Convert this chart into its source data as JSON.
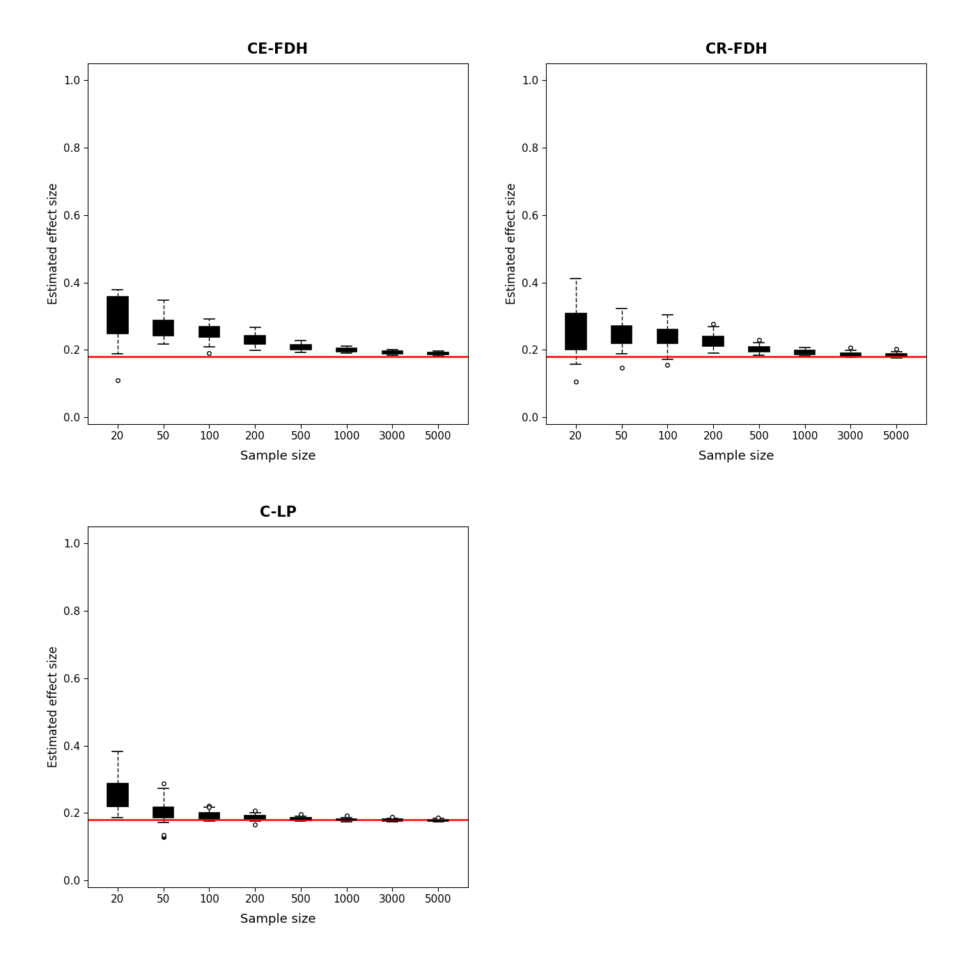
{
  "titles": [
    "CE-FDH",
    "CR-FDH",
    "C-LP"
  ],
  "sample_sizes": [
    20,
    50,
    100,
    200,
    500,
    1000,
    3000,
    5000
  ],
  "true_effect_size": 0.18,
  "ylabel": "Estimated effect size",
  "xlabel": "Sample size",
  "ylim": [
    -0.02,
    1.05
  ],
  "yticks": [
    0.0,
    0.2,
    0.4,
    0.6,
    0.8,
    1.0
  ],
  "ytick_labels": [
    "0.0",
    "0.2",
    "0.4",
    "0.6",
    "0.8",
    "1.0"
  ],
  "reference_line_color": "#FF0000",
  "box_facecolor": "#C8C8C8",
  "box_edgecolor": "#000000",
  "median_color": "#000000",
  "whisker_color": "#000000",
  "flier_color": "#000000",
  "CE_FDH": {
    "medians": [
      0.308,
      0.268,
      0.255,
      0.228,
      0.207,
      0.2,
      0.193,
      0.189
    ],
    "q1": [
      0.248,
      0.242,
      0.238,
      0.218,
      0.2,
      0.195,
      0.189,
      0.186
    ],
    "q3": [
      0.358,
      0.288,
      0.27,
      0.242,
      0.215,
      0.205,
      0.197,
      0.193
    ],
    "whislo": [
      0.188,
      0.218,
      0.21,
      0.198,
      0.192,
      0.19,
      0.184,
      0.183
    ],
    "whishi": [
      0.378,
      0.348,
      0.292,
      0.268,
      0.228,
      0.212,
      0.202,
      0.196
    ],
    "fliers_lo": [
      [
        0.11
      ],
      [],
      [
        0.19
      ],
      [],
      [],
      [],
      [],
      []
    ],
    "fliers_hi": [
      [],
      [],
      [],
      [],
      [],
      [],
      [],
      []
    ]
  },
  "CR_FDH": {
    "medians": [
      0.268,
      0.248,
      0.24,
      0.228,
      0.202,
      0.192,
      0.188,
      0.184
    ],
    "q1": [
      0.202,
      0.22,
      0.22,
      0.212,
      0.194,
      0.187,
      0.183,
      0.18
    ],
    "q3": [
      0.308,
      0.272,
      0.26,
      0.24,
      0.21,
      0.198,
      0.191,
      0.189
    ],
    "whislo": [
      0.158,
      0.188,
      0.172,
      0.19,
      0.184,
      0.182,
      0.179,
      0.177
    ],
    "whishi": [
      0.412,
      0.322,
      0.304,
      0.27,
      0.222,
      0.207,
      0.199,
      0.195
    ],
    "fliers_lo": [
      [
        0.105
      ],
      [
        0.148
      ],
      [
        0.155
      ],
      [],
      [],
      [],
      [],
      []
    ],
    "fliers_hi": [
      [],
      [],
      [],
      [
        0.278
      ],
      [
        0.23
      ],
      [],
      [
        0.207
      ],
      [
        0.204
      ]
    ]
  },
  "C_LP": {
    "medians": [
      0.252,
      0.204,
      0.193,
      0.186,
      0.183,
      0.181,
      0.18,
      0.179
    ],
    "q1": [
      0.22,
      0.187,
      0.183,
      0.181,
      0.179,
      0.178,
      0.177,
      0.177
    ],
    "q3": [
      0.287,
      0.217,
      0.201,
      0.193,
      0.186,
      0.183,
      0.182,
      0.181
    ],
    "whislo": [
      0.187,
      0.172,
      0.176,
      0.177,
      0.176,
      0.175,
      0.175,
      0.175
    ],
    "whishi": [
      0.382,
      0.274,
      0.217,
      0.202,
      0.191,
      0.187,
      0.185,
      0.184
    ],
    "fliers_lo": [
      [],
      [
        0.128,
        0.13,
        0.132,
        0.135
      ],
      [],
      [
        0.166
      ],
      [],
      [],
      [],
      []
    ],
    "fliers_hi": [
      [],
      [
        0.287
      ],
      [
        0.222,
        0.217
      ],
      [
        0.207
      ],
      [
        0.197
      ],
      [
        0.193
      ],
      [
        0.188
      ],
      [
        0.186
      ]
    ]
  }
}
